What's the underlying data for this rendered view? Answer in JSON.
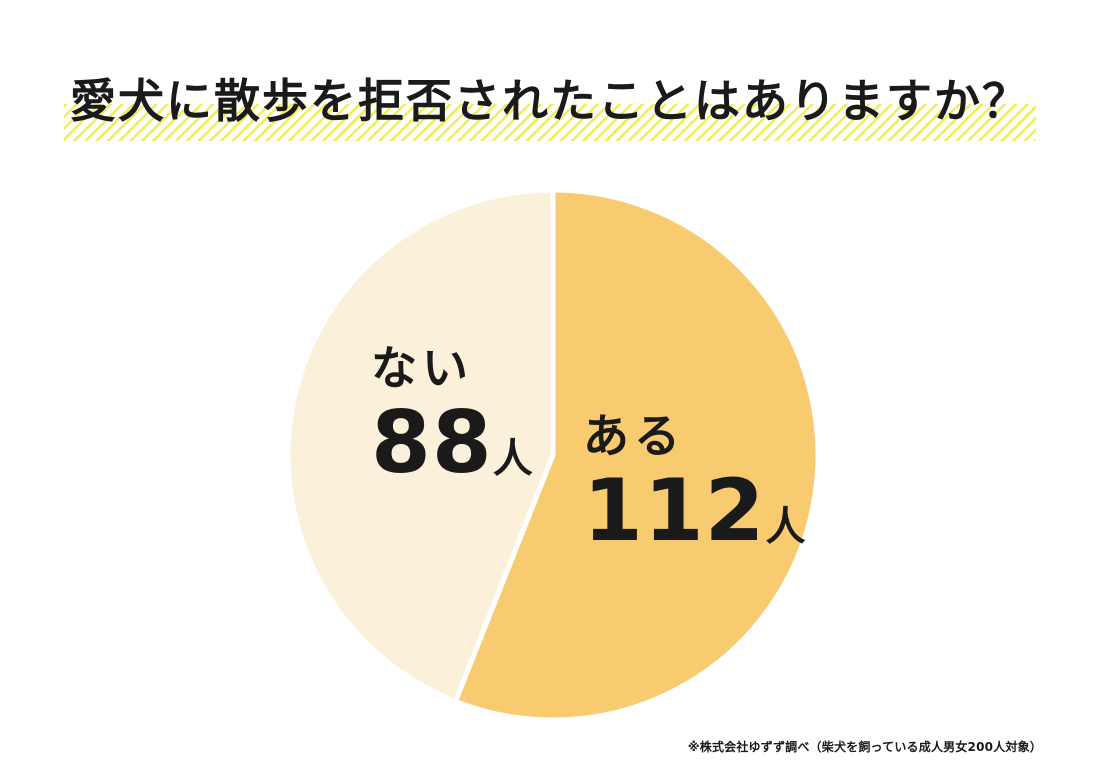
{
  "chart_data": {
    "type": "pie",
    "title": "愛犬に散歩を拒否されたことはありますか？",
    "total": 200,
    "unit": "人",
    "start_angle_deg": 0,
    "direction": "clockwise",
    "gap_color": "#FFFFFF",
    "legend_position": "inside",
    "slices": [
      {
        "key": "aru",
        "label": "ある",
        "value": 112,
        "color": "#F8CB71"
      },
      {
        "key": "nai",
        "label": "ない",
        "value": 88,
        "color": "#FBF0DA"
      }
    ]
  },
  "footnote": "※株式会社ゆずず調べ（柴犬を飼っている成人男女200人対象）",
  "colors": {
    "background": "#FFFFFF",
    "text": "#1A1A1A",
    "title_highlight": "#EFEF55"
  }
}
